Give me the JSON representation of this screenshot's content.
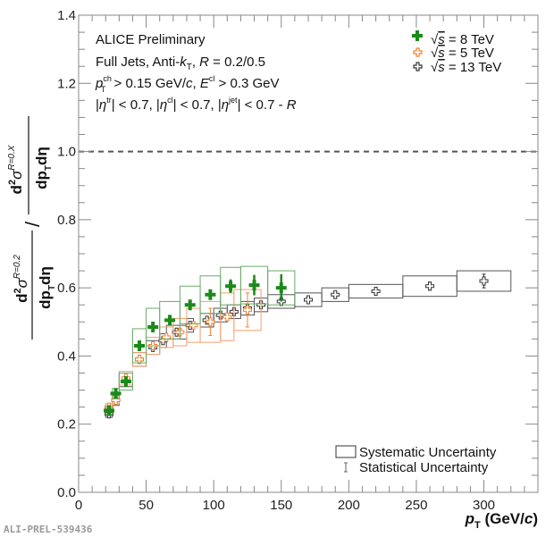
{
  "chart_data": {
    "type": "scatter",
    "title": "",
    "xlabel": "p_T (GeV/c)",
    "xlabel_parts": {
      "var": "p",
      "sub": "T",
      "unit": " (GeV/",
      "unit_c": "c",
      "close": ")"
    },
    "ylabel": "d²σ^(R=0.2)/dp_T dη / d²σ^(R=0.X)/dp_T dη",
    "ylabel_parts": {
      "d2": "d",
      "sup2": "2",
      "sigma": "σ",
      "r02": "R=0.2",
      "r0x": "R=0.X",
      "dp": "dp",
      "T": "T",
      "deta": "dη",
      "slash": "/"
    },
    "xlim": [
      0,
      340
    ],
    "ylim": [
      0.0,
      1.4
    ],
    "xticks": [
      0,
      50,
      100,
      150,
      200,
      250,
      300
    ],
    "xtick_labels": [
      "0",
      "50",
      "100",
      "150",
      "200",
      "250",
      "300"
    ],
    "yticks": [
      0.0,
      0.2,
      0.4,
      0.6,
      0.8,
      1.0,
      1.2,
      1.4
    ],
    "ytick_labels": [
      "0.0",
      "0.2",
      "0.4",
      "0.6",
      "0.8",
      "1.0",
      "1.2",
      "1.4"
    ],
    "reference_line": 1.0,
    "annotations": {
      "line1": "ALICE Preliminary",
      "line2": "Full Jets, Anti-k_T, R = 0.2/0.5",
      "line3": "p_T^ch > 0.15 GeV/c, E^cl > 0.3 GeV",
      "line4": "|η^tr| < 0.7, |η^cl| < 0.7, |η^jet| < 0.7 - R"
    },
    "annotation_parts": {
      "l2a": "Full Jets, Anti-",
      "l2k": "k",
      "l2T": "T",
      "l2b": ", ",
      "l2R": "R",
      "l2c": " = 0.2/0.5",
      "l3p": "p",
      "l3ch": "ch",
      "l3T": "T",
      "l3a": " > 0.15 GeV/",
      "l3c": "c",
      "l3b": ", ",
      "l3E": "E",
      "l3cl": "cl",
      "l3d": " > 0.3 GeV",
      "l4a": "|",
      "eta": "η",
      "tr": "tr",
      "l4b": "| < 0.7, |",
      "cl": "cl",
      "l4c": "| < 0.7, |",
      "jet": "jet",
      "l4d": "| < 0.7 - ",
      "l4R": "R"
    },
    "legend": {
      "position": "top-right",
      "entries": [
        "√s = 8 TeV",
        "√s = 5 TeV",
        "√s = 13 TeV"
      ],
      "sqrt": "√",
      "s": "s",
      "values": [
        " = 8 TeV",
        " = 5 TeV",
        " = 13 TeV"
      ]
    },
    "uncertainty_legend": {
      "position": "bottom-right",
      "systematic": "Systematic Uncertainty",
      "statistical": "Statistical Uncertainty"
    },
    "series": [
      {
        "name": "√s = 13 TeV",
        "color": "#333333",
        "marker": "open-cross",
        "x": [
          22.5,
          27.5,
          35,
          45,
          55,
          62.5,
          72.5,
          82.5,
          95,
          105,
          115,
          125,
          135,
          150,
          170,
          190,
          220,
          260,
          300
        ],
        "xerr": [
          2.5,
          2.5,
          5,
          5,
          5,
          2.5,
          7.5,
          2.5,
          5,
          5,
          5,
          5,
          5,
          10,
          10,
          10,
          20,
          20,
          20
        ],
        "y": [
          0.23,
          0.27,
          0.33,
          0.39,
          0.425,
          0.445,
          0.47,
          0.49,
          0.505,
          0.52,
          0.53,
          0.54,
          0.55,
          0.56,
          0.565,
          0.58,
          0.59,
          0.605,
          0.62
        ],
        "stat": [
          0.01,
          0.008,
          0.006,
          0.005,
          0.005,
          0.005,
          0.005,
          0.005,
          0.005,
          0.005,
          0.005,
          0.006,
          0.006,
          0.007,
          0.007,
          0.008,
          0.01,
          0.012,
          0.02
        ],
        "sys": [
          0.01,
          0.015,
          0.02,
          0.02,
          0.02,
          0.02,
          0.02,
          0.02,
          0.02,
          0.02,
          0.02,
          0.02,
          0.02,
          0.02,
          0.02,
          0.02,
          0.02,
          0.03,
          0.03
        ]
      },
      {
        "name": "√s = 5 TeV",
        "color": "#f08030",
        "marker": "open-cross",
        "x": [
          22.5,
          27.5,
          35,
          45,
          55,
          65,
          75,
          85,
          97.5,
          110,
          125
        ],
        "xerr": [
          2.5,
          2.5,
          5,
          5,
          5,
          5,
          5,
          5,
          7.5,
          5,
          10
        ],
        "y": [
          0.25,
          0.27,
          0.335,
          0.39,
          0.43,
          0.455,
          0.47,
          0.49,
          0.5,
          0.515,
          0.535
        ],
        "stat": [
          0.008,
          0.007,
          0.006,
          0.006,
          0.006,
          0.007,
          0.008,
          0.01,
          0.04,
          0.01,
          0.05
        ],
        "sys": [
          0.01,
          0.01,
          0.02,
          0.02,
          0.025,
          0.03,
          0.04,
          0.05,
          0.06,
          0.07,
          0.06
        ]
      },
      {
        "name": "√s = 8 TeV",
        "color": "#1a8a1a",
        "marker": "filled-cross",
        "x": [
          22.5,
          27.5,
          35,
          45,
          55,
          67.5,
          82.5,
          97.5,
          112.5,
          130,
          150
        ],
        "xerr": [
          2.5,
          2.5,
          5,
          5,
          5,
          7.5,
          7.5,
          7.5,
          7.5,
          10,
          10
        ],
        "y": [
          0.24,
          0.29,
          0.325,
          0.43,
          0.485,
          0.505,
          0.55,
          0.58,
          0.605,
          0.608,
          0.6
        ],
        "stat": [
          0.012,
          0.012,
          0.01,
          0.01,
          0.012,
          0.015,
          0.015,
          0.015,
          0.02,
          0.03,
          0.04
        ],
        "sys": [
          0.01,
          0.015,
          0.025,
          0.05,
          0.055,
          0.055,
          0.055,
          0.055,
          0.055,
          0.055,
          0.05
        ]
      }
    ]
  },
  "footer": {
    "watermark": "ALI-PREL-539436"
  }
}
